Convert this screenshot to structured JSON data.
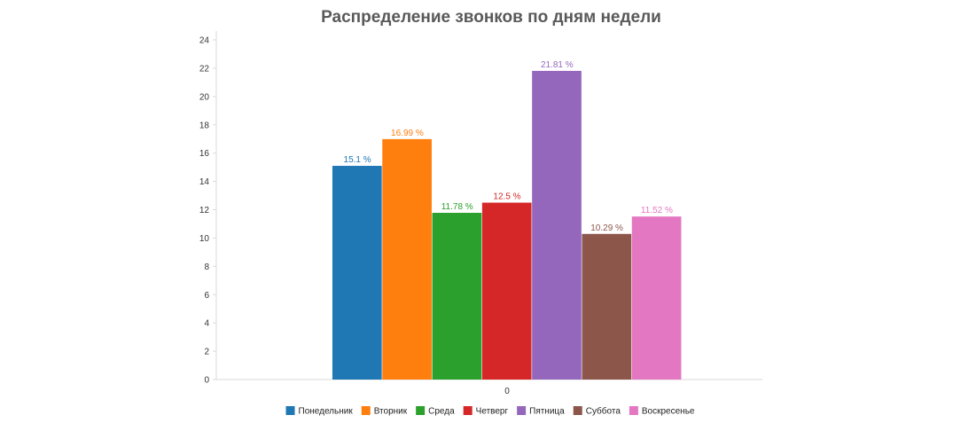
{
  "chart_data": {
    "type": "bar",
    "title": "Распределение звонков по дням недели",
    "categories": [
      "0"
    ],
    "ylim": [
      0,
      24
    ],
    "yticks": [
      0,
      2,
      4,
      6,
      8,
      10,
      12,
      14,
      16,
      18,
      20,
      22,
      24
    ],
    "grid": false,
    "legend_position": "bottom",
    "value_suffix": " %",
    "series": [
      {
        "name": "Понедельник",
        "values": [
          15.1
        ],
        "label": "15.1 %",
        "color": "#1f77b4"
      },
      {
        "name": "Вторник",
        "values": [
          16.99
        ],
        "label": "16.99 %",
        "color": "#ff7f0e"
      },
      {
        "name": "Среда",
        "values": [
          11.78
        ],
        "label": "11.78 %",
        "color": "#2ca02c"
      },
      {
        "name": "Четверг",
        "values": [
          12.5
        ],
        "label": "12.5 %",
        "color": "#d62728"
      },
      {
        "name": "Пятница",
        "values": [
          21.81
        ],
        "label": "21.81 %",
        "color": "#9467bd"
      },
      {
        "name": "Суббота",
        "values": [
          10.29
        ],
        "label": "10.29 %",
        "color": "#8c564b"
      },
      {
        "name": "Воскресенье",
        "values": [
          11.52
        ],
        "label": "11.52 %",
        "color": "#e377c2"
      }
    ]
  }
}
